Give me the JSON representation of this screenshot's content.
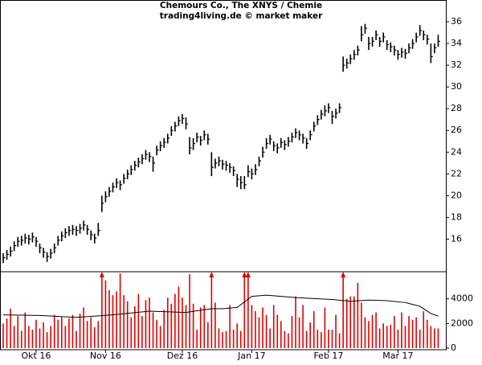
{
  "chart_data": {
    "type": "ohlc",
    "title": "Chemours Co., The XNYS / Chemie",
    "subtitle": "trading4living.de © market maker",
    "categories": [
      null,
      null,
      null,
      null,
      null,
      null,
      null,
      null,
      null,
      "Okt 16",
      null,
      null,
      null,
      null,
      null,
      null,
      null,
      null,
      null,
      null,
      null,
      null,
      null,
      null,
      null,
      null,
      null,
      null,
      "Nov 16",
      null,
      null,
      null,
      null,
      null,
      null,
      null,
      null,
      null,
      null,
      null,
      null,
      null,
      null,
      null,
      null,
      null,
      null,
      null,
      null,
      "Dez 16",
      null,
      null,
      null,
      null,
      null,
      null,
      null,
      null,
      null,
      null,
      null,
      null,
      null,
      null,
      null,
      null,
      null,
      null,
      "Jan 17",
      null,
      null,
      null,
      null,
      null,
      null,
      null,
      null,
      null,
      null,
      null,
      null,
      null,
      null,
      null,
      null,
      null,
      null,
      null,
      null,
      "Feb 17",
      null,
      null,
      null,
      null,
      null,
      null,
      null,
      null,
      null,
      null,
      null,
      null,
      null,
      null,
      null,
      null,
      null,
      null,
      "Mar 17",
      null,
      null,
      null,
      null,
      null,
      null,
      null,
      null,
      null,
      null,
      null
    ],
    "high": [
      14.7,
      15.0,
      15.3,
      15.8,
      16.2,
      16.3,
      16.5,
      16.4,
      16.6,
      16.2,
      15.6,
      15.2,
      14.8,
      15.1,
      15.6,
      16.3,
      16.7,
      17.0,
      17.2,
      17.3,
      17.2,
      17.4,
      17.7,
      17.3,
      16.8,
      16.5,
      17.5,
      20.0,
      20.4,
      20.8,
      21.2,
      21.6,
      21.4,
      22.0,
      22.4,
      22.8,
      23.2,
      23.5,
      23.8,
      24.2,
      24.0,
      23.6,
      24.6,
      25.0,
      25.3,
      25.7,
      26.4,
      26.8,
      27.3,
      27.5,
      27.2,
      25.4,
      25.3,
      25.8,
      25.5,
      26.0,
      25.7,
      24.0,
      23.4,
      23.6,
      23.3,
      23.2,
      23.0,
      22.7,
      22.0,
      21.8,
      21.8,
      22.8,
      22.5,
      22.9,
      23.6,
      24.5,
      25.3,
      25.6,
      25.0,
      24.8,
      25.3,
      25.1,
      25.4,
      25.8,
      26.2,
      26.0,
      25.7,
      25.3,
      26.0,
      26.8,
      27.4,
      27.9,
      28.3,
      28.5,
      27.8,
      28.0,
      28.5,
      32.8,
      32.6,
      33.0,
      33.4,
      33.8,
      35.6,
      35.8,
      34.6,
      34.6,
      35.2,
      34.6,
      35.0,
      34.3,
      34.1,
      33.8,
      33.4,
      33.6,
      33.5,
      34.0,
      34.4,
      35.0,
      35.7,
      35.2,
      34.8,
      34.0,
      34.0,
      34.8
    ],
    "low": [
      13.8,
      14.1,
      14.4,
      14.9,
      15.3,
      15.4,
      15.6,
      15.5,
      15.7,
      15.3,
      14.7,
      14.3,
      13.9,
      14.2,
      14.7,
      15.4,
      15.8,
      16.1,
      16.3,
      16.4,
      16.3,
      16.5,
      16.8,
      16.4,
      15.9,
      15.6,
      16.3,
      18.5,
      19.4,
      19.9,
      20.3,
      20.7,
      20.5,
      21.1,
      21.5,
      21.9,
      22.3,
      22.6,
      22.9,
      23.3,
      23.1,
      22.2,
      23.7,
      24.1,
      24.4,
      24.8,
      25.5,
      25.9,
      26.4,
      26.6,
      26.1,
      23.8,
      24.2,
      24.9,
      24.6,
      25.1,
      24.7,
      21.8,
      22.5,
      22.7,
      22.4,
      22.3,
      22.1,
      21.8,
      20.8,
      20.6,
      20.6,
      21.7,
      21.5,
      21.9,
      22.7,
      23.5,
      24.3,
      24.7,
      24.1,
      23.9,
      24.4,
      24.2,
      24.5,
      24.9,
      25.3,
      25.1,
      24.8,
      24.3,
      25.1,
      25.9,
      26.5,
      27.0,
      27.3,
      27.6,
      26.6,
      27.1,
      27.6,
      31.4,
      31.7,
      32.1,
      32.5,
      32.9,
      34.2,
      34.9,
      33.4,
      33.7,
      34.3,
      33.7,
      34.1,
      33.4,
      33.2,
      32.9,
      32.5,
      32.7,
      32.6,
      33.1,
      33.5,
      34.1,
      34.7,
      34.3,
      33.9,
      32.2,
      33.1,
      33.7
    ],
    "close": [
      14.3,
      14.6,
      14.9,
      15.4,
      15.8,
      15.9,
      16.1,
      16.0,
      16.2,
      15.8,
      15.2,
      14.8,
      14.4,
      14.7,
      15.2,
      15.9,
      16.3,
      16.6,
      16.8,
      16.9,
      16.8,
      17.0,
      17.3,
      16.9,
      16.4,
      16.1,
      16.8,
      19.3,
      19.9,
      20.4,
      20.8,
      21.2,
      21.0,
      21.6,
      22.0,
      22.4,
      22.8,
      23.1,
      23.4,
      23.8,
      23.6,
      23.0,
      24.2,
      24.6,
      24.9,
      25.3,
      26.0,
      26.4,
      26.9,
      27.1,
      26.6,
      24.4,
      24.8,
      25.4,
      25.1,
      25.6,
      25.2,
      22.6,
      23.0,
      23.2,
      22.9,
      22.8,
      22.6,
      22.3,
      21.5,
      21.2,
      21.0,
      22.2,
      22.0,
      22.4,
      23.2,
      24.0,
      24.8,
      25.2,
      24.6,
      24.4,
      24.9,
      24.7,
      25.0,
      25.4,
      25.8,
      25.6,
      25.3,
      24.8,
      25.6,
      26.4,
      27.0,
      27.5,
      27.8,
      28.1,
      27.3,
      27.6,
      28.1,
      32.0,
      32.2,
      32.6,
      33.0,
      33.4,
      34.8,
      35.4,
      34.0,
      34.2,
      34.8,
      34.2,
      34.6,
      33.9,
      33.7,
      33.4,
      33.0,
      33.2,
      33.1,
      33.6,
      34.0,
      34.6,
      35.2,
      34.8,
      34.4,
      32.8,
      33.6,
      34.2
    ],
    "color": "#000000",
    "ylim": [
      13,
      38
    ],
    "yticks": [
      16,
      18,
      20,
      22,
      24,
      26,
      28,
      30,
      32,
      34,
      36
    ],
    "volume": {
      "color": "#e00000",
      "values": [
        2000,
        2400,
        3200,
        1800,
        2600,
        1400,
        2900,
        1800,
        1500,
        2300,
        1600,
        2100,
        1300,
        1800,
        2700,
        2300,
        2500,
        1800,
        2400,
        2700,
        1400,
        2800,
        3300,
        2200,
        2500,
        1700,
        2200,
        7000,
        5500,
        4700,
        4300,
        4600,
        6100,
        4300,
        3800,
        2500,
        3400,
        4400,
        2600,
        3900,
        4100,
        2900,
        2300,
        1800,
        3100,
        4100,
        3600,
        4400,
        5000,
        4100,
        3500,
        6000,
        3600,
        1500,
        3300,
        3500,
        2100,
        7000,
        3700,
        1600,
        1300,
        1400,
        3500,
        1500,
        2000,
        1400,
        7000,
        7000,
        3500,
        3000,
        2500,
        3300,
        2700,
        1600,
        3500,
        2700,
        2200,
        1400,
        1200,
        2600,
        4200,
        2500,
        3500,
        1400,
        2100,
        3000,
        1500,
        1300,
        3300,
        1500,
        1500,
        2700,
        1200,
        7000,
        4000,
        4200,
        4200,
        5300,
        3700,
        2500,
        2200,
        2700,
        2900,
        1600,
        2000,
        1800,
        1900,
        2600,
        1500,
        2900,
        1800,
        2600,
        2300,
        2500,
        1500,
        3000,
        2300,
        1800,
        1600,
        1600
      ],
      "ylim": [
        0,
        6200
      ],
      "yticks": [
        0,
        2000,
        4000
      ],
      "average": {
        "color": "#000000",
        "x": [
          0,
          10,
          20,
          30,
          40,
          50,
          57,
          60,
          64,
          68,
          72,
          80,
          90,
          95,
          100,
          105,
          110,
          114,
          117,
          119
        ],
        "values": [
          2700,
          2650,
          2500,
          2700,
          3000,
          2900,
          3200,
          3200,
          3300,
          4200,
          4300,
          4100,
          3950,
          3800,
          3900,
          3850,
          3700,
          3400,
          2800,
          2600
        ]
      }
    }
  }
}
